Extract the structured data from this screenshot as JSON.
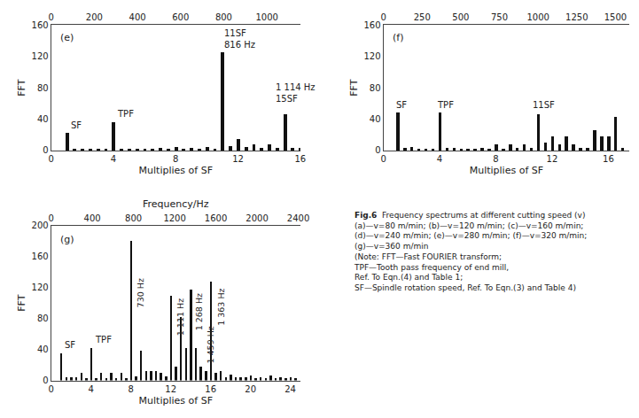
{
  "chart_data": [
    {
      "type": "bar",
      "title": "(e)",
      "xlabel": "Multiplies of SF",
      "ylabel": "FFT",
      "x": [
        1,
        1.5,
        2,
        2.5,
        3,
        3.5,
        4,
        4.5,
        5,
        5.5,
        6,
        6.5,
        7,
        7.5,
        8,
        8.5,
        9,
        9.5,
        10,
        10.5,
        11,
        11.5,
        12,
        12.5,
        13,
        13.5,
        14,
        14.5,
        15,
        15.5,
        16
      ],
      "values": [
        22,
        2,
        2,
        2,
        2,
        2,
        36,
        2,
        2,
        2,
        2,
        2,
        3,
        2,
        4,
        2,
        3,
        2,
        4,
        2,
        125,
        5,
        14,
        4,
        8,
        3,
        8,
        3,
        46,
        3,
        3
      ],
      "color": "#111111",
      "xlim": [
        0,
        16
      ],
      "ylim": [
        0,
        160
      ],
      "xticks": [
        0,
        4,
        8,
        12,
        16
      ],
      "yticks": [
        0,
        40,
        80,
        120,
        160
      ],
      "x2lim": [
        0,
        1155
      ],
      "x2ticks": [
        0,
        200,
        400,
        600,
        800,
        1000
      ],
      "grid": false,
      "annotations": [
        {
          "text": "SF",
          "x": 1.15,
          "y": 24
        },
        {
          "text": "TPF",
          "x": 4.1,
          "y": 38
        },
        {
          "text": "11SF\n816 Hz",
          "x": 11.0,
          "y": 127
        },
        {
          "text": "1 114 Hz\n15SF",
          "x": 14.3,
          "y": 58
        }
      ]
    },
    {
      "type": "bar",
      "title": "(f)",
      "xlabel": "Multiplies of SF",
      "ylabel": "FFT",
      "x": [
        1,
        1.5,
        2,
        2.5,
        3,
        3.5,
        4,
        4.5,
        5,
        5.5,
        6,
        6.5,
        7,
        7.5,
        8,
        8.5,
        9,
        9.5,
        10,
        10.5,
        11,
        11.5,
        12,
        12.5,
        13,
        13.5,
        14,
        14.5,
        15,
        15.5,
        16,
        16.5,
        17
      ],
      "values": [
        48,
        3,
        4,
        2,
        2,
        2,
        48,
        3,
        3,
        2,
        2,
        2,
        3,
        2,
        8,
        2,
        8,
        3,
        8,
        3,
        46,
        10,
        18,
        8,
        18,
        8,
        3,
        3,
        25,
        18,
        18,
        42,
        3
      ],
      "color": "#111111",
      "xlim": [
        0,
        17.5
      ],
      "ylim": [
        0,
        160
      ],
      "xticks": [
        0,
        4,
        8,
        12,
        16
      ],
      "yticks": [
        0,
        40,
        80,
        120,
        160
      ],
      "x2lim": [
        0,
        1590
      ],
      "x2ticks": [
        0,
        250,
        500,
        750,
        1000,
        1250,
        1500
      ],
      "grid": false,
      "annotations": [
        {
          "text": "SF",
          "x": 0.8,
          "y": 50
        },
        {
          "text": "TPF",
          "x": 3.7,
          "y": 50
        },
        {
          "text": "11SF",
          "x": 10.5,
          "y": 50
        }
      ]
    },
    {
      "type": "bar",
      "title": "(g)",
      "xlabel": "Multiplies of SF",
      "ylabel": "FFT",
      "x2label": "Frequency/Hz",
      "x": [
        1,
        1.5,
        2,
        2.5,
        3,
        3.5,
        4,
        4.5,
        5,
        5.5,
        6,
        6.5,
        7,
        7.5,
        8,
        8.5,
        9,
        9.5,
        10,
        10.5,
        11,
        11.5,
        12,
        12.5,
        13,
        13.5,
        14,
        14.5,
        15,
        15.5,
        16,
        16.5,
        17,
        17.5,
        18,
        18.5,
        19,
        19.5,
        20,
        20.5,
        21,
        21.5,
        22,
        22.5,
        23,
        23.5,
        24,
        24.5
      ],
      "values": [
        35,
        4,
        4,
        4,
        10,
        3,
        42,
        3,
        10,
        3,
        10,
        3,
        10,
        3,
        180,
        5,
        38,
        12,
        12,
        12,
        10,
        5,
        110,
        18,
        82,
        42,
        118,
        42,
        18,
        12,
        128,
        10,
        12,
        4,
        8,
        4,
        4,
        4,
        7,
        3,
        4,
        3,
        7,
        3,
        4,
        3,
        4,
        3
      ],
      "color": "#111111",
      "xlim": [
        0,
        25
      ],
      "ylim": [
        0,
        200
      ],
      "xticks": [
        0,
        4,
        8,
        12,
        16,
        20,
        24
      ],
      "yticks": [
        0,
        40,
        80,
        120,
        160,
        200
      ],
      "x2lim": [
        0,
        2420
      ],
      "x2ticks": [
        0,
        400,
        800,
        1200,
        1600,
        2000,
        2400
      ],
      "grid": false,
      "annotations": [
        {
          "text": "730 Hz",
          "x": 8.05,
          "y": 92
        },
        {
          "text": "1 111 Hz",
          "x": 12.05,
          "y": 55
        },
        {
          "text": "1 268 Hz",
          "x": 13.85,
          "y": 62
        },
        {
          "text": "1 363 Hz",
          "x": 16.05,
          "y": 68
        },
        {
          "text": "1 459 Hz",
          "x": 15.05,
          "y": 20
        },
        {
          "text": "SF",
          "x": 1.2,
          "y": 37
        },
        {
          "text": "TPF",
          "x": 4.2,
          "y": 44
        }
      ]
    }
  ],
  "caption": {
    "label": "Fig.6",
    "lines": [
      "Frequency spectrums at different cutting speed (v)",
      "(a)—v=80 m/min; (b)—v=120 m/min; (c)—v=160 m/min;",
      "(d)—v=240 m/min; (e)—v=280 m/min; (f)—v=320 m/min;",
      "(g)—v=360 m/min",
      "(Note: FFT—Fast FOURIER transform;",
      "TPF—Tooth pass frequency of end mill,",
      "Ref. To Eqn.(4) and Table 1;",
      "SF—Spindle rotation speed, Ref. To Eqn.(3) and Table 4)"
    ]
  }
}
